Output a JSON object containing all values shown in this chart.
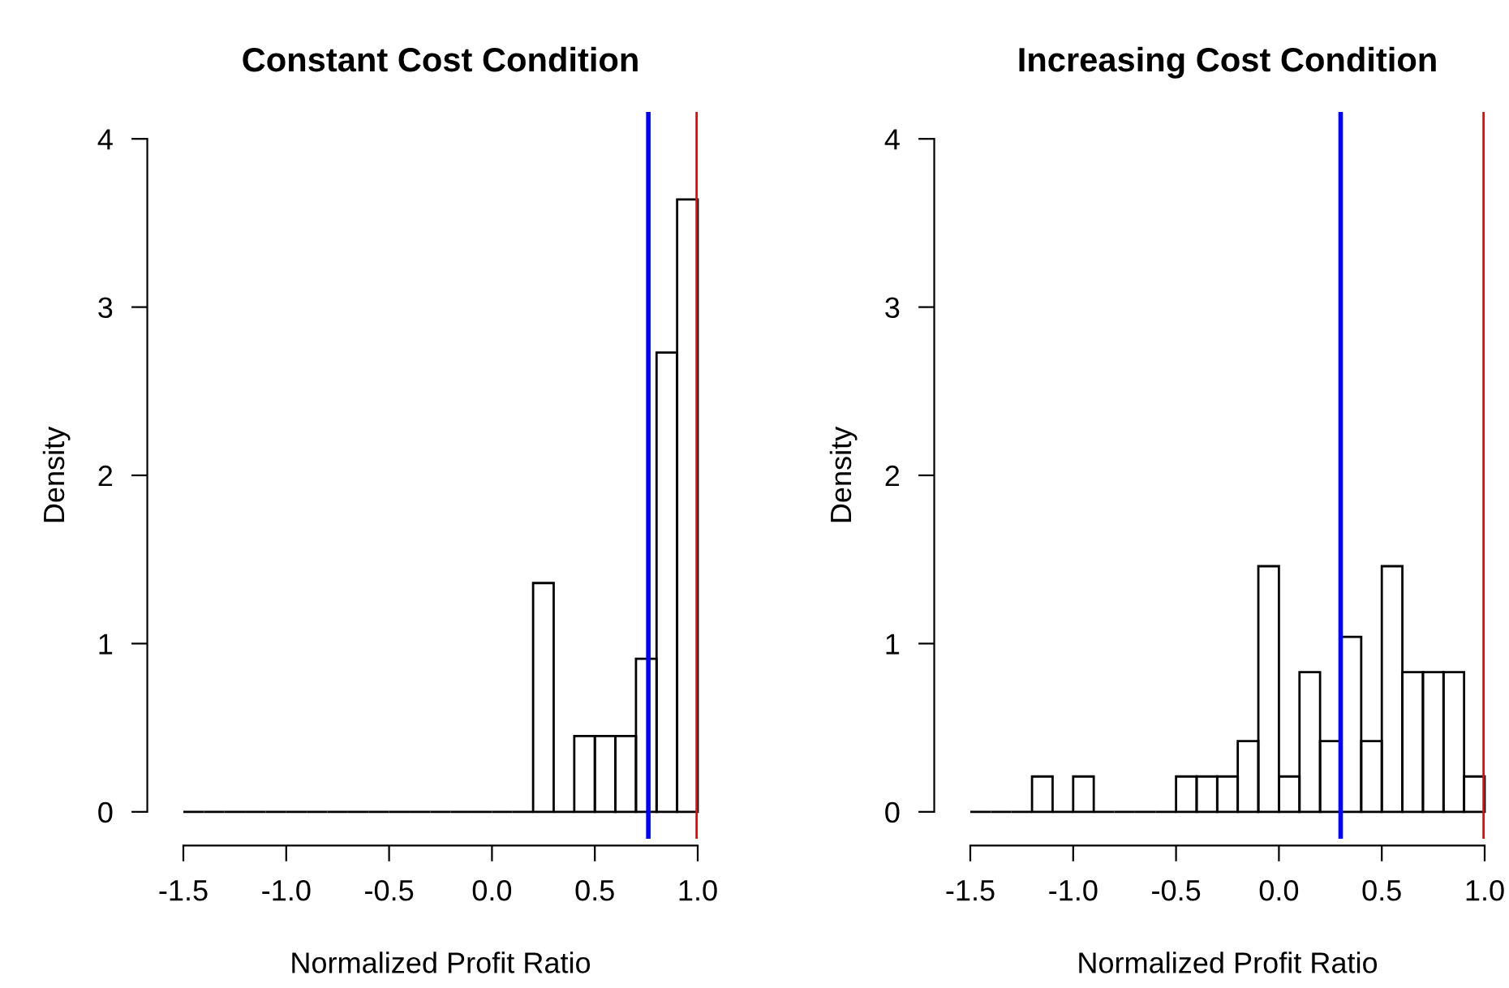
{
  "chart_data": [
    {
      "type": "histogram",
      "title": "Constant Cost Condition",
      "xlabel": "Normalized Profit Ratio",
      "ylabel": "Density",
      "bins": [
        -1.5,
        -1.4,
        -1.3,
        -1.2,
        -1.1,
        -1.0,
        -0.9,
        -0.8,
        -0.7,
        -0.6,
        -0.5,
        -0.4,
        -0.3,
        -0.2,
        -0.1,
        0.0,
        0.1,
        0.2,
        0.3,
        0.4,
        0.5,
        0.6,
        0.7,
        0.8,
        0.9,
        1.0
      ],
      "values": [
        0,
        0,
        0,
        0,
        0,
        0,
        0,
        0,
        0,
        0,
        0,
        0,
        0,
        0,
        0,
        0,
        0,
        1.36,
        0,
        0.45,
        0.45,
        0.45,
        0.91,
        2.73,
        3.64
      ],
      "color": "#000000",
      "xlim": [
        -1.5,
        1.0
      ],
      "ylim": [
        -0.16,
        4.16
      ],
      "xticks": [
        {
          "value": -1.5,
          "label": "-1.5"
        },
        {
          "value": -1.0,
          "label": "-1.0"
        },
        {
          "value": -0.5,
          "label": "-0.5"
        },
        {
          "value": 0.0,
          "label": "0.0"
        },
        {
          "value": 0.5,
          "label": "0.5"
        },
        {
          "value": 1.0,
          "label": "1.0"
        }
      ],
      "yticks": [
        0,
        1,
        2,
        3,
        4
      ],
      "ref_lines": [
        {
          "axis": "x",
          "value": 0.76,
          "color": "#0000ff"
        },
        {
          "axis": "x",
          "value": 1.0,
          "color": "#ff0000"
        }
      ],
      "grid": false,
      "legend": false
    },
    {
      "type": "histogram",
      "title": "Increasing Cost Condition",
      "xlabel": "Normalized Profit Ratio",
      "ylabel": "Density",
      "bins": [
        -1.5,
        -1.4,
        -1.3,
        -1.2,
        -1.1,
        -1.0,
        -0.9,
        -0.8,
        -0.7,
        -0.6,
        -0.5,
        -0.4,
        -0.3,
        -0.2,
        -0.1,
        0.0,
        0.1,
        0.2,
        0.3,
        0.4,
        0.5,
        0.6,
        0.7,
        0.8,
        0.9,
        1.0
      ],
      "values": [
        0,
        0,
        0,
        0.21,
        0,
        0.21,
        0,
        0,
        0,
        0,
        0.21,
        0.21,
        0.21,
        0.42,
        1.46,
        0.21,
        0.83,
        0.42,
        1.04,
        0.42,
        1.46,
        0.83,
        0.83,
        0.83,
        0.21
      ],
      "color": "#000000",
      "xlim": [
        -1.5,
        1.0
      ],
      "ylim": [
        -0.16,
        4.16
      ],
      "xticks": [
        {
          "value": -1.5,
          "label": "-1.5"
        },
        {
          "value": -1.0,
          "label": "-1.0"
        },
        {
          "value": -0.5,
          "label": "-0.5"
        },
        {
          "value": 0.0,
          "label": "0.0"
        },
        {
          "value": 0.5,
          "label": "0.5"
        },
        {
          "value": 1.0,
          "label": "1.0"
        }
      ],
      "yticks": [
        0,
        1,
        2,
        3,
        4
      ],
      "ref_lines": [
        {
          "axis": "x",
          "value": 0.3,
          "color": "#0000ff"
        },
        {
          "axis": "x",
          "value": 1.0,
          "color": "#ff0000"
        }
      ],
      "grid": false,
      "legend": false
    }
  ]
}
